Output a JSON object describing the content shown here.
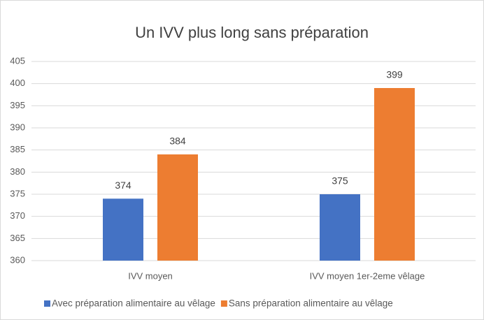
{
  "chart_data": {
    "type": "bar",
    "title": "Un IVV plus long sans préparation",
    "categories": [
      "IVV moyen",
      "IVV moyen 1er-2eme vêlage"
    ],
    "series": [
      {
        "name": "Avec préparation alimentaire au vêlage",
        "color": "#4472c4",
        "values": [
          374,
          375
        ]
      },
      {
        "name": "Sans préparation alimentaire au vêlage",
        "color": "#ed7d31",
        "values": [
          384,
          399
        ]
      }
    ],
    "ylim": [
      360,
      405
    ],
    "yticks": [
      360,
      365,
      370,
      375,
      380,
      385,
      390,
      395,
      400,
      405
    ],
    "grid": true,
    "legend": "bottom"
  }
}
